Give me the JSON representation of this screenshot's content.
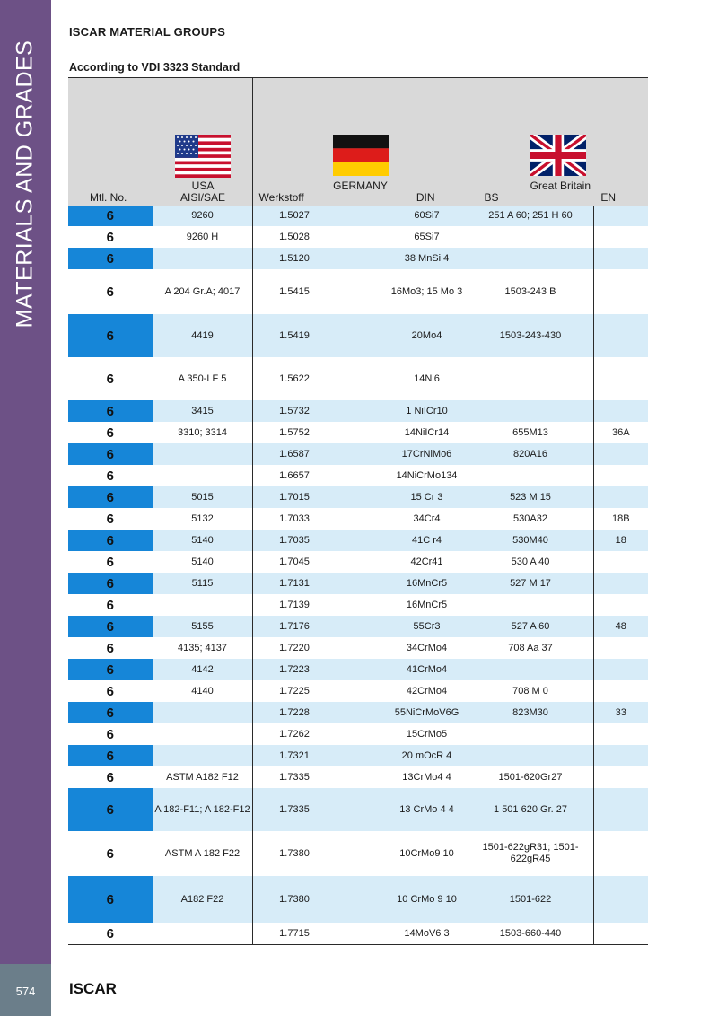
{
  "sidebar": {
    "title": "MATERIALS AND GRADES",
    "page_number": "574"
  },
  "footer": {
    "brand": "ISCAR"
  },
  "header": {
    "title": "ISCAR MATERIAL GROUPS",
    "subtitle": "According to VDI 3323 Standard"
  },
  "table": {
    "columns": {
      "mtl": "Mtl. No.",
      "usa_country": "USA",
      "usa_std": "AISI/SAE",
      "germany_country": "GERMANY",
      "werkstoff": "Werkstoff",
      "din": "DIN",
      "gb_country": "Great Britain",
      "bs": "BS",
      "en": "EN"
    },
    "flags": {
      "usa": "usa-flag",
      "germany": "germany-flag",
      "gb": "union-jack-flag"
    },
    "rows": [
      {
        "mtl": "6",
        "aisi": "9260",
        "werkstoff": "1.5027",
        "din": "60Si7",
        "bs": "251 A 60; 251 H 60",
        "en": "",
        "h": 23
      },
      {
        "mtl": "6",
        "aisi": "9260 H",
        "werkstoff": "1.5028",
        "din": "65Si7",
        "bs": "",
        "en": "",
        "h": 24
      },
      {
        "mtl": "6",
        "aisi": "",
        "werkstoff": "1.5120",
        "din": "38 MnSi 4",
        "bs": "",
        "en": "",
        "h": 24
      },
      {
        "mtl": "6",
        "aisi": "A 204 Gr.A; 4017",
        "werkstoff": "1.5415",
        "din": "16Mo3; 15 Mo 3",
        "bs": "1503-243 B",
        "en": "",
        "h": 50
      },
      {
        "mtl": "6",
        "aisi": "4419",
        "werkstoff": "1.5419",
        "din": "20Mo4",
        "bs": "1503-243-430",
        "en": "",
        "h": 48
      },
      {
        "mtl": "6",
        "aisi": "A 350-LF 5",
        "werkstoff": "1.5622",
        "din": "14Ni6",
        "bs": "",
        "en": "",
        "h": 48
      },
      {
        "mtl": "6",
        "aisi": "3415",
        "werkstoff": "1.5732",
        "din": "1 NiICr10",
        "bs": "",
        "en": "",
        "h": 24
      },
      {
        "mtl": "6",
        "aisi": "3310; 3314",
        "werkstoff": "1.5752",
        "din": "14NiICr14",
        "bs": "655M13",
        "en": "36A",
        "h": 24
      },
      {
        "mtl": "6",
        "aisi": "",
        "werkstoff": "1.6587",
        "din": "17CrNiMo6",
        "bs": "820A16",
        "en": "",
        "h": 24
      },
      {
        "mtl": "6",
        "aisi": "",
        "werkstoff": "1.6657",
        "din": "14NiCrMo134",
        "bs": "",
        "en": "",
        "h": 24
      },
      {
        "mtl": "6",
        "aisi": "5015",
        "werkstoff": "1.7015",
        "din": "15 Cr 3",
        "bs": "523 M 15",
        "en": "",
        "h": 24
      },
      {
        "mtl": "6",
        "aisi": "5132",
        "werkstoff": "1.7033",
        "din": "34Cr4",
        "bs": "530A32",
        "en": "18B",
        "h": 24
      },
      {
        "mtl": "6",
        "aisi": "5140",
        "werkstoff": "1.7035",
        "din": "41C r4",
        "bs": "530M40",
        "en": "18",
        "h": 24
      },
      {
        "mtl": "6",
        "aisi": "5140",
        "werkstoff": "1.7045",
        "din": "42Cr41",
        "bs": "530 A 40",
        "en": "",
        "h": 24
      },
      {
        "mtl": "6",
        "aisi": "5115",
        "werkstoff": "1.7131",
        "din": "16MnCr5",
        "bs": "527 M 17",
        "en": "",
        "h": 24
      },
      {
        "mtl": "6",
        "aisi": "",
        "werkstoff": "1.7139",
        "din": "16MnCr5",
        "bs": "",
        "en": "",
        "h": 24
      },
      {
        "mtl": "6",
        "aisi": "5155",
        "werkstoff": "1.7176",
        "din": "55Cr3",
        "bs": "527 A 60",
        "en": "48",
        "h": 24
      },
      {
        "mtl": "6",
        "aisi": "4135; 4137",
        "werkstoff": "1.7220",
        "din": "34CrMo4",
        "bs": "708 Aa 37",
        "en": "",
        "h": 24
      },
      {
        "mtl": "6",
        "aisi": "4142",
        "werkstoff": "1.7223",
        "din": "41CrMo4",
        "bs": "",
        "en": "",
        "h": 24
      },
      {
        "mtl": "6",
        "aisi": "4140",
        "werkstoff": "1.7225",
        "din": "42CrMo4",
        "bs": "708 M 0",
        "en": "",
        "h": 24
      },
      {
        "mtl": "6",
        "aisi": "",
        "werkstoff": "1.7228",
        "din": "55NiCrMoV6G",
        "bs": "823M30",
        "en": "33",
        "h": 24
      },
      {
        "mtl": "6",
        "aisi": "",
        "werkstoff": "1.7262",
        "din": "15CrMo5",
        "bs": "",
        "en": "",
        "h": 24
      },
      {
        "mtl": "6",
        "aisi": "",
        "werkstoff": "1.7321",
        "din": "20 mOcR 4",
        "bs": "",
        "en": "",
        "h": 24
      },
      {
        "mtl": "6",
        "aisi": "ASTM A182 F12",
        "werkstoff": "1.7335",
        "din": "13CrMo4 4",
        "bs": "1501-620Gr27",
        "en": "",
        "h": 24
      },
      {
        "mtl": "6",
        "aisi": "A 182-F11; A 182-F12",
        "werkstoff": "1.7335",
        "din": "13 CrMo 4 4",
        "bs": "1 501 620 Gr. 27",
        "en": "",
        "h": 48
      },
      {
        "mtl": "6",
        "aisi": "ASTM A 182 F22",
        "werkstoff": "1.7380",
        "din": "10CrMo9 10",
        "bs": "1501-622gR31; 1501-622gR45",
        "en": "",
        "h": 50
      },
      {
        "mtl": "6",
        "aisi": "A182 F22",
        "werkstoff": "1.7380",
        "din": "10 CrMo 9 10",
        "bs": "1501-622",
        "en": "",
        "h": 52
      },
      {
        "mtl": "6",
        "aisi": "",
        "werkstoff": "1.7715",
        "din": "14MoV6 3",
        "bs": "1503-660-440",
        "en": "",
        "h": 24
      }
    ]
  }
}
